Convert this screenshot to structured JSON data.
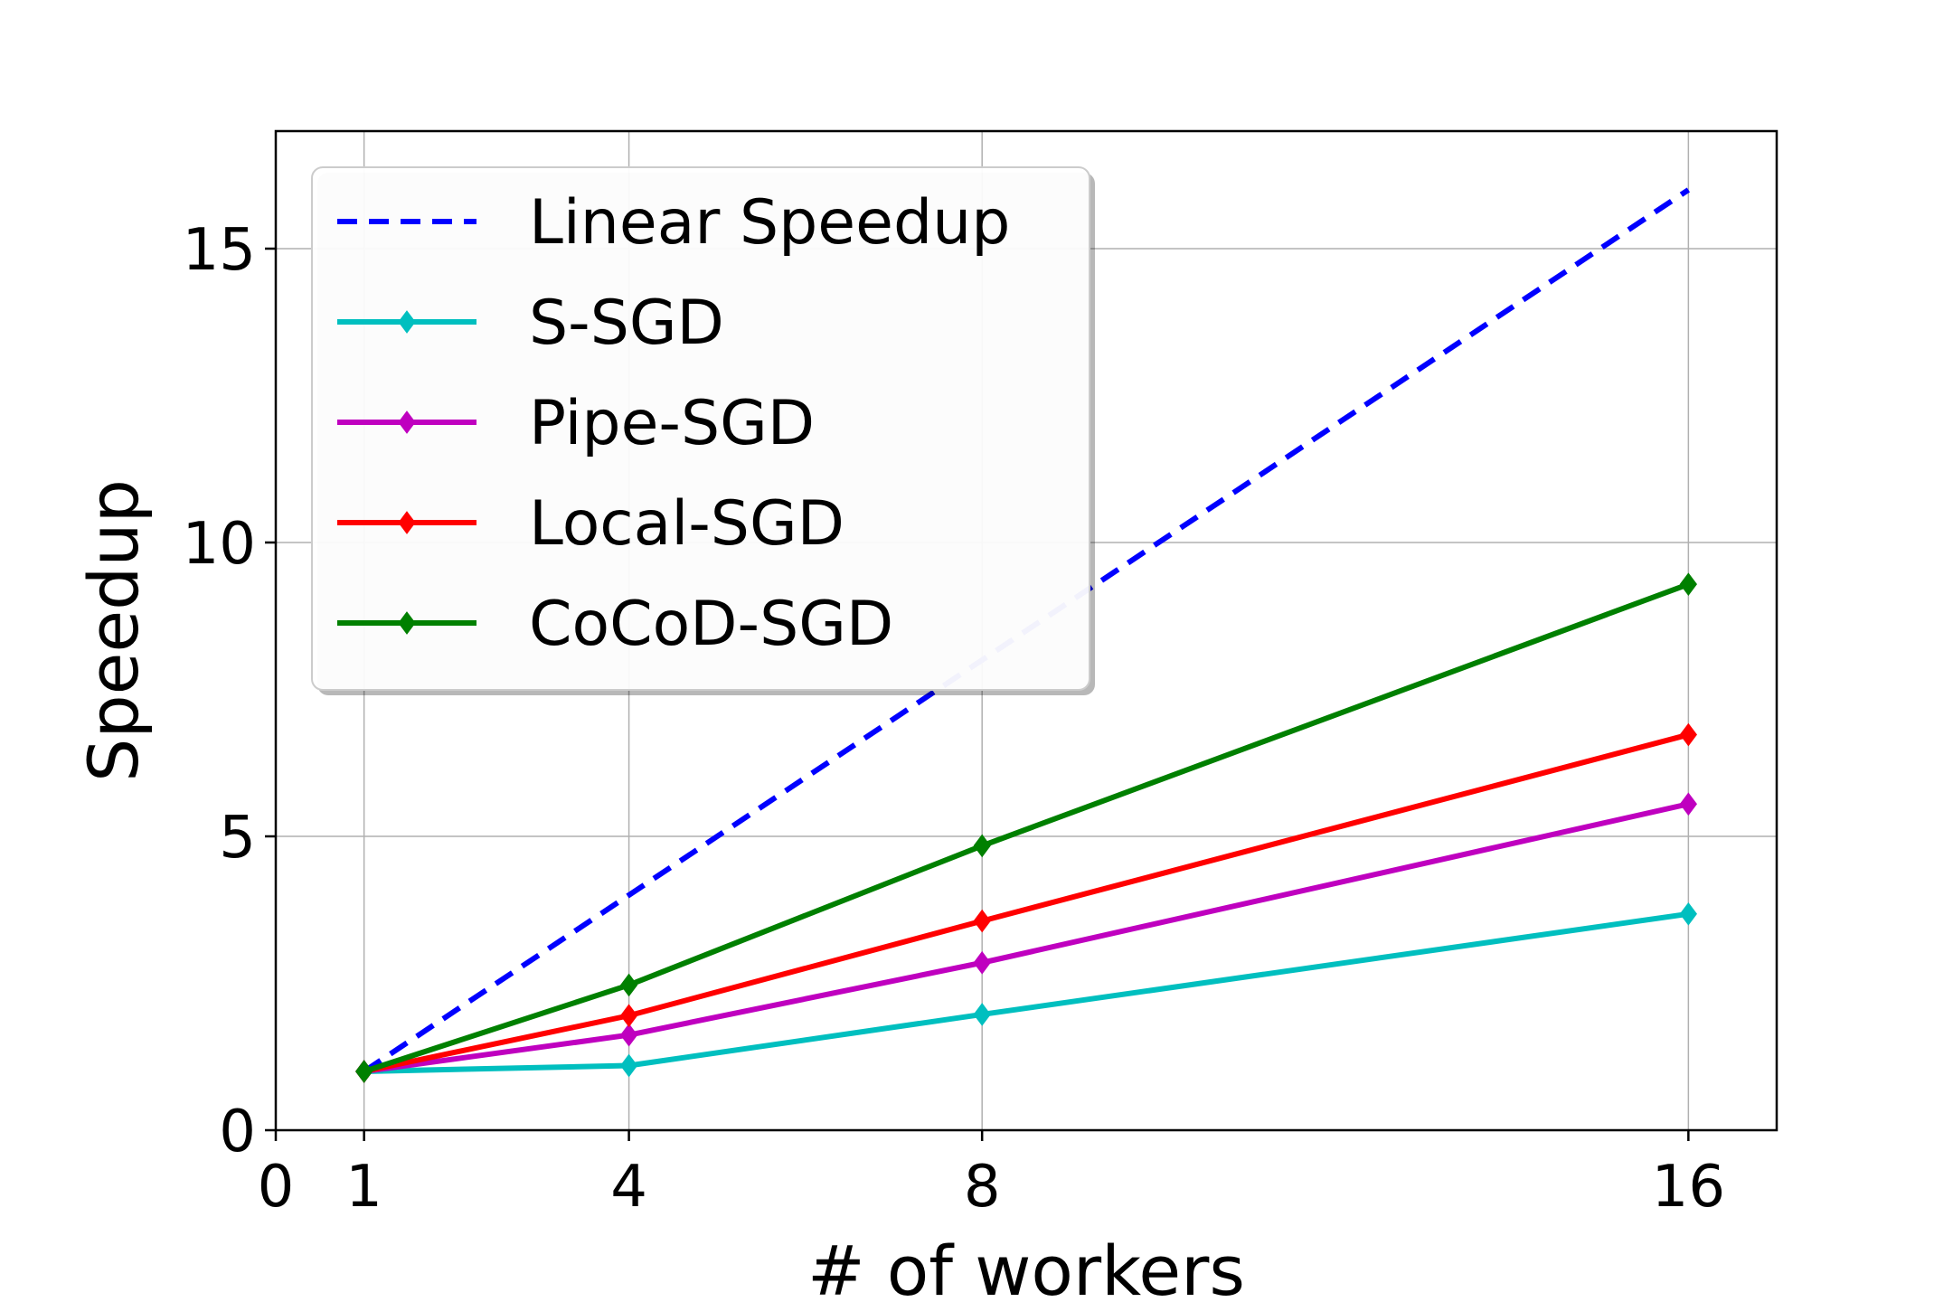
{
  "chart_data": {
    "type": "line",
    "title": "",
    "xlabel": "# of workers",
    "ylabel": "Speedup",
    "xlim": [
      0,
      17
    ],
    "ylim": [
      0,
      17
    ],
    "xticks": [
      0,
      1,
      4,
      8,
      16
    ],
    "xtick_labels": [
      "0",
      "1",
      "4",
      "8",
      "16"
    ],
    "yticks": [
      0,
      5,
      10,
      15
    ],
    "ytick_labels": [
      "0",
      "5",
      "10",
      "15"
    ],
    "grid": true,
    "legend_position": "upper-left",
    "series": [
      {
        "name": "Linear Speedup",
        "x": [
          1,
          4,
          8,
          16
        ],
        "y": [
          1,
          4,
          8,
          16
        ],
        "color": "#0000ff",
        "style": "dashed",
        "marker": "none"
      },
      {
        "name": "S-SGD",
        "x": [
          1,
          4,
          8,
          16
        ],
        "y": [
          1.0,
          1.1,
          1.97,
          3.68
        ],
        "color": "#00bfbf",
        "style": "solid",
        "marker": "diamond"
      },
      {
        "name": "Pipe-SGD",
        "x": [
          1,
          4,
          8,
          16
        ],
        "y": [
          1.0,
          1.62,
          2.85,
          5.55
        ],
        "color": "#bf00bf",
        "style": "solid",
        "marker": "diamond"
      },
      {
        "name": "Local-SGD",
        "x": [
          1,
          4,
          8,
          16
        ],
        "y": [
          1.0,
          1.95,
          3.56,
          6.73
        ],
        "color": "#ff0000",
        "style": "solid",
        "marker": "diamond"
      },
      {
        "name": "CoCoD-SGD",
        "x": [
          1,
          4,
          8,
          16
        ],
        "y": [
          1.0,
          2.47,
          4.84,
          9.29
        ],
        "color": "#008000",
        "style": "solid",
        "marker": "diamond"
      }
    ]
  }
}
